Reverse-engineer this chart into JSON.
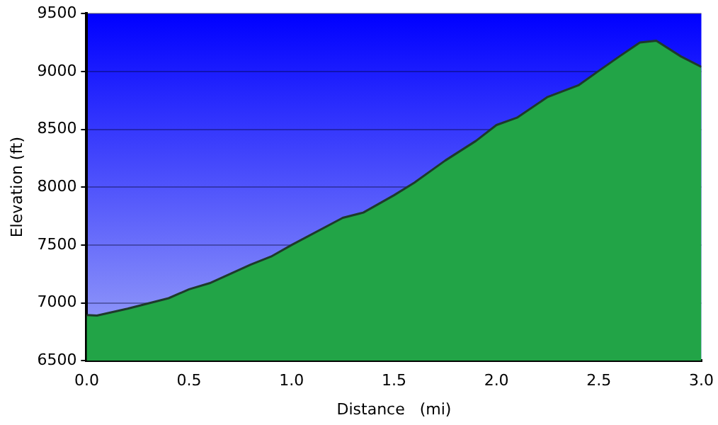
{
  "chart_data": {
    "type": "area",
    "xlabel": "Distance   (mi)",
    "ylabel": "Elevation (ft)",
    "x": [
      0,
      0.05,
      0.2,
      0.4,
      0.5,
      0.6,
      0.8,
      0.9,
      1.0,
      1.25,
      1.35,
      1.5,
      1.6,
      1.75,
      1.9,
      2.0,
      2.1,
      2.25,
      2.4,
      2.5,
      2.6,
      2.7,
      2.78,
      2.9,
      3.0
    ],
    "series": [
      {
        "color": "#22a447",
        "values": [
          6895,
          6890,
          6950,
          7040,
          7117,
          7170,
          7330,
          7400,
          7500,
          7735,
          7780,
          7930,
          8040,
          8230,
          8400,
          8537,
          8600,
          8780,
          8880,
          9006,
          9130,
          9250,
          9265,
          9130,
          9040
        ]
      }
    ],
    "xlim": [
      0,
      3
    ],
    "xticks": [
      {
        "value": 0,
        "label": "0.0"
      },
      {
        "value": 0.5,
        "label": "0.5"
      },
      {
        "value": 1,
        "label": "1.0"
      },
      {
        "value": 1.5,
        "label": "1.5"
      },
      {
        "value": 2,
        "label": "2.0"
      },
      {
        "value": 2.5,
        "label": "2.5"
      },
      {
        "value": 3,
        "label": "3.0"
      }
    ],
    "ylim": [
      6500,
      9500
    ],
    "yticks": [
      6500,
      7000,
      7500,
      8000,
      8500,
      9000,
      9500
    ],
    "grid": "y",
    "legend": false
  }
}
